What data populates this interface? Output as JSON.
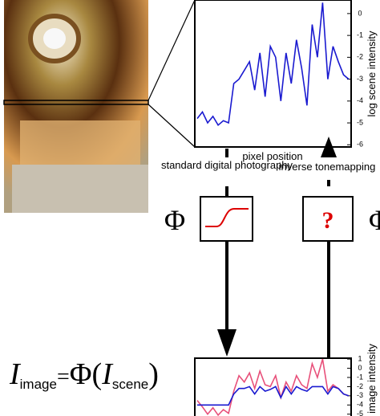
{
  "labels": {
    "x_axis": "pixel position",
    "top_y_axis": "log scene intensity",
    "bottom_y_axis": "log image intensity",
    "forward": "standard digital photography",
    "inverse": "inverse tonemapping",
    "unknown": "?",
    "phi": "Φ"
  },
  "formula": {
    "lhs": "I",
    "lhs_sub": "image",
    "eq": "=",
    "fn": "Φ(",
    "rhs": "I",
    "rhs_sub": "scene",
    "close": ")"
  },
  "plots": [
    {
      "type": "line",
      "ylim": [
        -6.1,
        0.62
      ],
      "yticks": [
        0,
        -1,
        -2,
        -3,
        -4,
        -5,
        -6
      ],
      "xlim": [
        0,
        29
      ],
      "x": [
        0,
        1,
        2,
        3,
        4,
        5,
        6,
        7,
        8,
        9,
        10,
        11,
        12,
        13,
        14,
        15,
        16,
        17,
        18,
        19,
        20,
        21,
        22,
        23,
        24,
        25,
        26,
        27,
        28,
        29
      ],
      "series": [
        {
          "color": "#1a1ad0",
          "values": [
            -4.8,
            -4.5,
            -5.0,
            -4.7,
            -5.1,
            -4.9,
            -5.0,
            -3.2,
            -3.0,
            -2.6,
            -2.2,
            -3.5,
            -1.8,
            -3.8,
            -1.5,
            -2.0,
            -4.0,
            -1.8,
            -3.2,
            -1.2,
            -2.5,
            -4.2,
            -0.5,
            -2.0,
            0.5,
            -3.0,
            -1.5,
            -2.2,
            -2.8,
            -3.0
          ]
        }
      ]
    },
    {
      "type": "line",
      "ylim": [
        -5.2,
        1.1
      ],
      "yticks": [
        1,
        0,
        -1,
        -2,
        -3,
        -4,
        -5
      ],
      "xlim": [
        0,
        29
      ],
      "x": [
        0,
        1,
        2,
        3,
        4,
        5,
        6,
        7,
        8,
        9,
        10,
        11,
        12,
        13,
        14,
        15,
        16,
        17,
        18,
        19,
        20,
        21,
        22,
        23,
        24,
        25,
        26,
        27,
        28,
        29
      ],
      "series": [
        {
          "color": "#e8507a",
          "values": [
            -3.5,
            -4.2,
            -5.0,
            -4.3,
            -5.1,
            -4.5,
            -4.9,
            -2.5,
            -0.8,
            -1.5,
            -0.5,
            -2.2,
            -0.3,
            -1.8,
            -2.0,
            -0.8,
            -3.2,
            -1.5,
            -2.5,
            -0.8,
            -1.8,
            -2.2,
            0.5,
            -1.0,
            1.0,
            -2.5,
            -1.8,
            -2.2,
            -2.8,
            -3.0
          ]
        },
        {
          "color": "#1a1ad0",
          "values": [
            -4,
            -4,
            -4,
            -4,
            -4,
            -4,
            -4,
            -2.8,
            -2.2,
            -2.2,
            -2,
            -2.8,
            -2,
            -2.5,
            -2.3,
            -2,
            -3.2,
            -2,
            -2.8,
            -2,
            -2.3,
            -2.5,
            -2,
            -2,
            -2,
            -2.8,
            -2,
            -2.2,
            -2.8,
            -3
          ]
        }
      ]
    }
  ]
}
